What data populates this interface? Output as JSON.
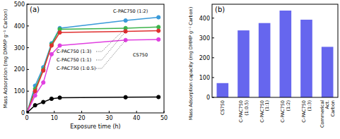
{
  "chart_data": [
    {
      "type": "line",
      "annotations": [
        "(a)"
      ],
      "x_label": "Exposure time (h)",
      "y_label": "Mass Adsorption  (mg DMMP g⁻¹ Carbon)",
      "x": [
        0,
        3,
        6,
        9,
        12,
        36,
        48
      ],
      "xlim": [
        0,
        50
      ],
      "xticks": [
        0,
        10,
        20,
        30,
        40,
        50
      ],
      "ylim": [
        0,
        500
      ],
      "yticks": [
        0,
        100,
        200,
        300,
        400,
        500
      ],
      "grid": false,
      "marker": "circle",
      "series": [
        {
          "name": "C-PAC750 (1:2)",
          "color": "#3a9ad9",
          "values": [
            0,
            125,
            210,
            320,
            390,
            425,
            440
          ]
        },
        {
          "name": "C-PAC750 (1:3)",
          "color": "#3cb44b",
          "values": [
            0,
            110,
            200,
            315,
            385,
            390,
            395
          ]
        },
        {
          "name": "C-PAC750 (1:1)",
          "color": "#e03030",
          "values": [
            0,
            100,
            195,
            310,
            370,
            375,
            378
          ]
        },
        {
          "name": "C-PAC750 (1:0.5)",
          "color": "#e040e0",
          "values": [
            0,
            80,
            140,
            270,
            310,
            335,
            338
          ]
        },
        {
          "name": "CS750",
          "color": "#000000",
          "values": [
            0,
            35,
            50,
            65,
            70,
            72,
            73
          ]
        }
      ]
    },
    {
      "type": "bar",
      "annotations": [
        "(b)"
      ],
      "y_label": "Mass Adsorption capacity (mg DMMP g⁻¹ Carbon)",
      "categories": [
        "CS750",
        "C-PAC750 (1:0.5)",
        "C-PAC750 (1:1)",
        "C-PAC750 (1:2)",
        "C-PAC750 (1:3)",
        "Commerical Act. Carbon"
      ],
      "values": [
        72,
        338,
        375,
        438,
        392,
        255
      ],
      "color": "#6666ee",
      "ylim": [
        0,
        470
      ],
      "yticks": [
        0,
        100,
        200,
        300,
        400
      ],
      "grid": false
    }
  ]
}
